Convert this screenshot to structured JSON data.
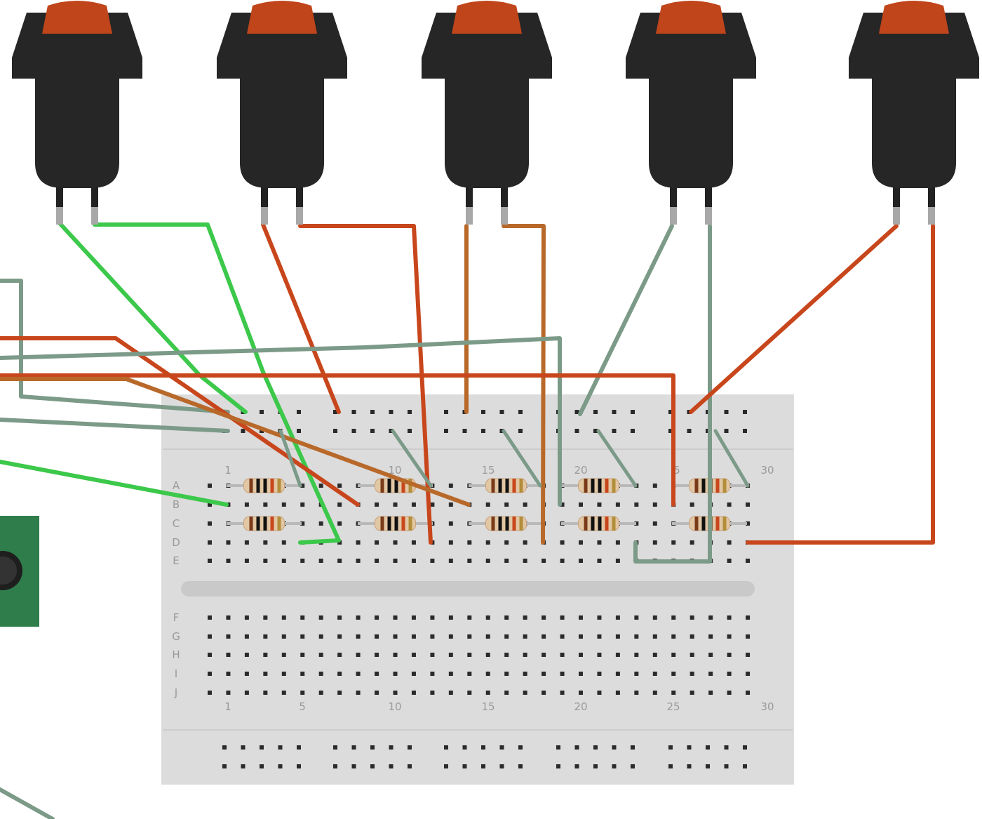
{
  "breadboard": {
    "row_labels_top": [
      "A",
      "B",
      "C",
      "D",
      "E"
    ],
    "row_labels_bottom": [
      "F",
      "G",
      "H",
      "I",
      "J"
    ],
    "column_numbers": [
      "1",
      "5",
      "10",
      "15",
      "20",
      "25",
      "30"
    ],
    "top_column_numbers_visible": [
      "1",
      "10",
      "15",
      "20",
      "5",
      "30"
    ],
    "columns": 30,
    "rows": 10
  },
  "components": {
    "pushbuttons": [
      {
        "id": "button-1",
        "cap_color": "#c0451b",
        "body_color": "#262626"
      },
      {
        "id": "button-2",
        "cap_color": "#c0451b",
        "body_color": "#262626"
      },
      {
        "id": "button-3",
        "cap_color": "#c0451b",
        "body_color": "#262626"
      },
      {
        "id": "button-4",
        "cap_color": "#c0451b",
        "body_color": "#262626"
      },
      {
        "id": "button-5",
        "cap_color": "#c0451b",
        "body_color": "#262626"
      }
    ],
    "resistors": 10,
    "module": {
      "name": "sensor-module",
      "color": "#2e7d4a"
    }
  },
  "colors": {
    "wire_green": "#3cc84a",
    "wire_red": "#c8461c",
    "wire_gray": "#7c9a88",
    "wire_brown": "#b8692a",
    "board": "#dcdcdc",
    "hole": "#2a2a2a",
    "hole_active": "#3cc84a"
  }
}
